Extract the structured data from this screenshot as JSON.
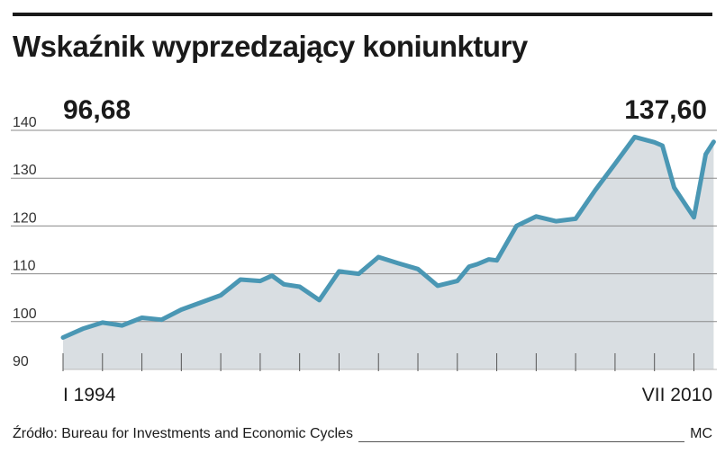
{
  "title": "Wskaźnik wyprzedzający koniunktury",
  "start_value": "96,68",
  "end_value": "137,60",
  "x_start_label": "I 1994",
  "x_end_label": "VII 2010",
  "source": "Źródło: Bureau for Investments and Economic Cycles",
  "author": "MC",
  "colors": {
    "line": "#4a97b4",
    "area": "#d9dee2",
    "grid": "#8a8a8a"
  },
  "chart_data": {
    "type": "area",
    "title": "Wskaźnik wyprzedzający koniunktury",
    "xlabel": "",
    "ylabel": "",
    "x_range": [
      "I 1994",
      "VII 2010"
    ],
    "x": [
      1994.0,
      1994.5,
      1995.0,
      1995.5,
      1996.0,
      1996.5,
      1997.0,
      1997.5,
      1998.0,
      1998.5,
      1999.0,
      1999.3,
      1999.6,
      2000.0,
      2000.5,
      2001.0,
      2001.5,
      2002.0,
      2002.5,
      2003.0,
      2003.5,
      2004.0,
      2004.3,
      2004.5,
      2004.8,
      2005.0,
      2005.5,
      2006.0,
      2006.5,
      2007.0,
      2007.5,
      2008.0,
      2008.5,
      2009.0,
      2009.2,
      2009.5,
      2010.0,
      2010.3,
      2010.5
    ],
    "y": [
      96.68,
      98.5,
      99.8,
      99.2,
      100.8,
      100.4,
      102.5,
      104.0,
      105.5,
      108.8,
      108.5,
      109.6,
      107.8,
      107.3,
      104.5,
      110.5,
      110.0,
      113.5,
      112.2,
      111.0,
      107.5,
      108.5,
      111.5,
      112.0,
      113.0,
      112.8,
      120.0,
      122.0,
      121.0,
      121.5,
      127.5,
      133.0,
      138.6,
      137.5,
      136.8,
      128.0,
      121.8,
      135.0,
      137.6
    ],
    "ylim": [
      90,
      140
    ],
    "yticks": [
      "90",
      "100",
      "110",
      "120",
      "130",
      "140"
    ],
    "grid": true,
    "series": [
      {
        "values_ref": "y"
      }
    ]
  }
}
